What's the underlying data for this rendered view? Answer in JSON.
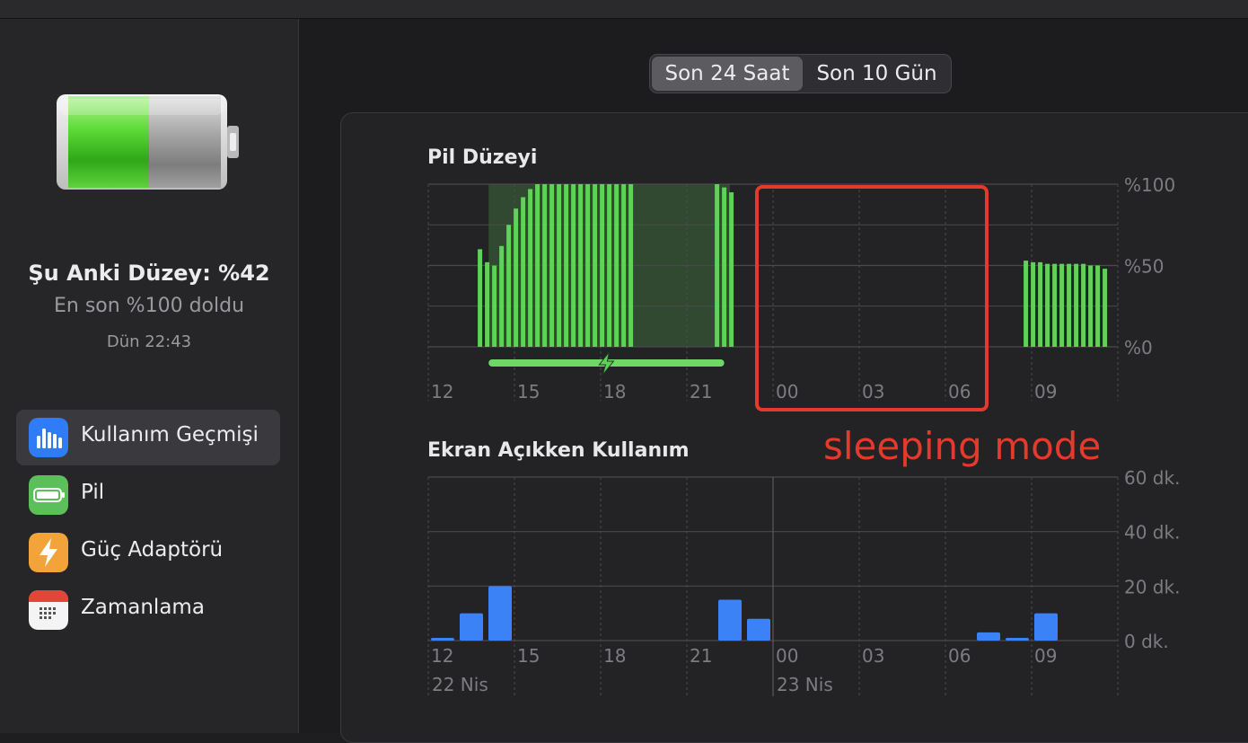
{
  "sidebar": {
    "status": {
      "current_level": "Şu Anki Düzey: %42",
      "last_full": "En son %100 doldu",
      "last_full_time": "Dün 22:43"
    },
    "nav": [
      {
        "label": "Kullanım Geçmişi",
        "icon": "bar-chart-icon",
        "selected": true
      },
      {
        "label": "Pil",
        "icon": "battery-icon",
        "selected": false
      },
      {
        "label": "Güç Adaptörü",
        "icon": "lightning-bolt-icon",
        "selected": false
      },
      {
        "label": "Zamanlama",
        "icon": "calendar-icon",
        "selected": false
      }
    ]
  },
  "range_tabs": {
    "options": [
      "Son 24 Saat",
      "Son 10 Gün"
    ],
    "selected": 0
  },
  "annotation": {
    "text": "sleeping mode",
    "color": "#e5392b"
  },
  "colors": {
    "battery_green": "#62d05c",
    "usage_blue": "#3b82f6",
    "selected_nav": "#3a3a3e"
  },
  "chart_data": [
    {
      "type": "bar",
      "title": "Pil Düzeyi",
      "x_ticks": [
        "12",
        "15",
        "18",
        "21",
        "00",
        "03",
        "06",
        "09"
      ],
      "y_ticks": [
        "%100",
        "%50",
        "%0"
      ],
      "ylim": [
        0,
        100
      ],
      "series": [
        {
          "values": [
            {
              "x": 13.8,
              "y": 60
            },
            {
              "x": 14.05,
              "y": 52
            },
            {
              "x": 14.3,
              "y": 50
            },
            {
              "x": 14.55,
              "y": 62
            },
            {
              "x": 14.8,
              "y": 75
            },
            {
              "x": 15.05,
              "y": 85
            },
            {
              "x": 15.3,
              "y": 92
            },
            {
              "x": 15.55,
              "y": 97
            },
            {
              "x": 15.8,
              "y": 100
            },
            {
              "x": 16.05,
              "y": 100
            },
            {
              "x": 16.3,
              "y": 100
            },
            {
              "x": 16.55,
              "y": 100
            },
            {
              "x": 16.8,
              "y": 100
            },
            {
              "x": 17.05,
              "y": 100
            },
            {
              "x": 17.3,
              "y": 100
            },
            {
              "x": 17.55,
              "y": 100
            },
            {
              "x": 17.8,
              "y": 100
            },
            {
              "x": 18.05,
              "y": 100
            },
            {
              "x": 18.3,
              "y": 100
            },
            {
              "x": 18.55,
              "y": 100
            },
            {
              "x": 18.8,
              "y": 100
            },
            {
              "x": 19.05,
              "y": 100
            },
            {
              "x": 22.05,
              "y": 100
            },
            {
              "x": 22.3,
              "y": 98
            },
            {
              "x": 22.55,
              "y": 95
            },
            {
              "x": 32.8,
              "y": 53
            },
            {
              "x": 33.05,
              "y": 52
            },
            {
              "x": 33.3,
              "y": 52
            },
            {
              "x": 33.55,
              "y": 51
            },
            {
              "x": 33.8,
              "y": 51
            },
            {
              "x": 34.05,
              "y": 51
            },
            {
              "x": 34.3,
              "y": 51
            },
            {
              "x": 34.55,
              "y": 51
            },
            {
              "x": 34.8,
              "y": 51
            },
            {
              "x": 35.05,
              "y": 50
            },
            {
              "x": 35.3,
              "y": 50
            },
            {
              "x": 35.55,
              "y": 48
            }
          ]
        }
      ],
      "charging_period": {
        "from": 14.1,
        "to": 22.3,
        "icon": "lightning-bolt-icon"
      },
      "shaded_period": {
        "from": 14.1,
        "to": 22.5
      }
    },
    {
      "type": "bar",
      "title": "Ekran Açıkken Kullanım",
      "x_ticks": [
        "12",
        "15",
        "18",
        "21",
        "00",
        "03",
        "06",
        "09"
      ],
      "date_labels": [
        {
          "at": "12",
          "text": "22 Nis"
        },
        {
          "at": "00",
          "text": "23 Nis"
        }
      ],
      "y_ticks": [
        "60 dk.",
        "40 dk.",
        "20 dk.",
        "0 dk."
      ],
      "ylim": [
        0,
        60
      ],
      "series": [
        {
          "values": [
            {
              "x": 12.5,
              "y": 1
            },
            {
              "x": 13.5,
              "y": 10
            },
            {
              "x": 14.5,
              "y": 20
            },
            {
              "x": 22.5,
              "y": 15
            },
            {
              "x": 23.5,
              "y": 8
            },
            {
              "x": 31.5,
              "y": 3
            },
            {
              "x": 32.5,
              "y": 1
            },
            {
              "x": 33.5,
              "y": 10
            }
          ]
        }
      ]
    }
  ]
}
